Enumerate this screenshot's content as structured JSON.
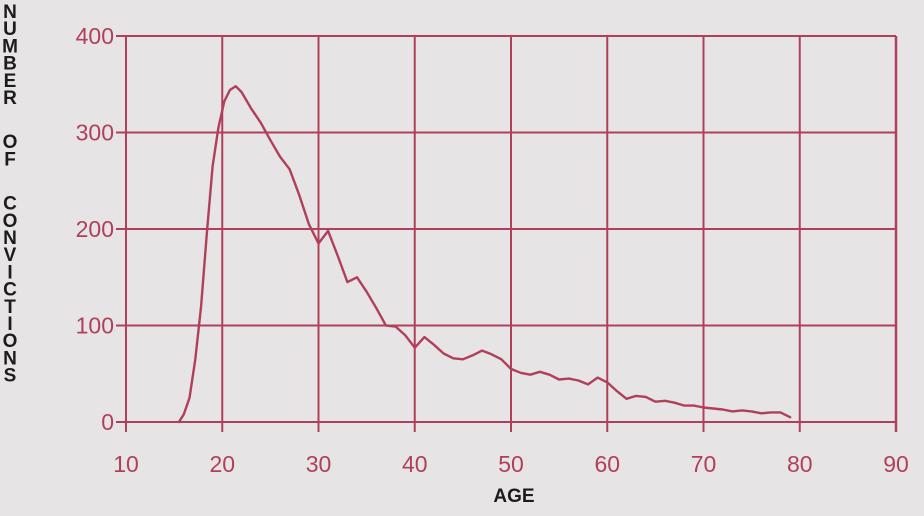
{
  "chart_data": {
    "type": "line",
    "title": "",
    "xlabel": "AGE",
    "ylabel": "NUMBER OF CONVICTIONS",
    "xlim": [
      10,
      90
    ],
    "ylim": [
      0,
      400
    ],
    "x_ticks": [
      10,
      20,
      30,
      40,
      50,
      60,
      70,
      80,
      90
    ],
    "y_ticks": [
      0,
      100,
      200,
      300,
      400
    ],
    "grid": true,
    "colors": {
      "line": "#b0405a",
      "text": "#1c1c1c",
      "background": "#e6e4e4"
    },
    "series": [
      {
        "x": [
          15.5,
          16,
          16.6,
          17.2,
          17.8,
          18.4,
          19,
          19.6,
          20.2,
          20.8,
          21.4,
          22,
          23,
          24,
          25,
          26,
          27,
          28,
          29,
          30,
          31,
          32,
          33,
          34,
          35,
          36,
          37,
          38,
          39,
          40,
          41,
          42,
          43,
          44,
          45,
          46,
          47,
          48,
          49,
          50,
          51,
          52,
          53,
          54,
          55,
          56,
          57,
          58,
          59,
          60,
          61,
          62,
          63,
          64,
          65,
          66,
          67,
          68,
          69,
          70,
          71,
          72,
          73,
          74,
          75,
          76,
          77,
          78,
          79
        ],
        "y": [
          0,
          8,
          25,
          65,
          120,
          195,
          265,
          305,
          332,
          344,
          348,
          342,
          325,
          310,
          292,
          275,
          262,
          235,
          205,
          185,
          198,
          172,
          145,
          150,
          135,
          118,
          100,
          99,
          90,
          77,
          88,
          80,
          71,
          66,
          65,
          69,
          74,
          70,
          65,
          55,
          51,
          49,
          52,
          49,
          44,
          45,
          43,
          39,
          46,
          41,
          32,
          24,
          27,
          26,
          21,
          22,
          20,
          17,
          17,
          15,
          14,
          13,
          11,
          12,
          11,
          9,
          10,
          10,
          5
        ]
      }
    ]
  }
}
